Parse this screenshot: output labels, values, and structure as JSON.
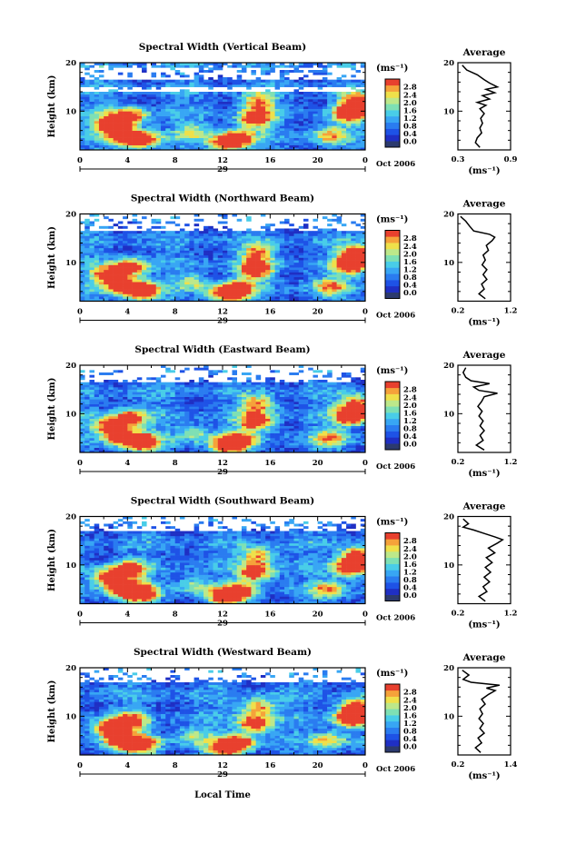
{
  "figure": {
    "xlabel": "Local Time",
    "date_label": "Oct 2006",
    "day_label": "29"
  },
  "colorbar": {
    "unit_label": "(ms⁻¹)",
    "ticks": [
      "0.0",
      "0.4",
      "0.8",
      "1.2",
      "1.6",
      "2.0",
      "2.4",
      "2.8"
    ],
    "colors": [
      "#2c3a6e",
      "#1f2fc4",
      "#1e52e6",
      "#2a7cf0",
      "#38a6f4",
      "#49cde8",
      "#7ee0b4",
      "#bde88a",
      "#efe04a",
      "#f5a23a",
      "#e8402e"
    ]
  },
  "chart_data": [
    {
      "type": "heatmap",
      "title": "Spectral Width (Vertical Beam)",
      "ylabel": "Height (km)",
      "xlim": [
        0,
        24
      ],
      "ylim": [
        2,
        20
      ],
      "xticks": [
        "0",
        "4",
        "8",
        "12",
        "16",
        "20",
        "0"
      ],
      "yticks": [
        "10",
        "20"
      ],
      "profile": {
        "title": "Average",
        "xlim": [
          0.3,
          0.9
        ],
        "xticks": [
          "0.3",
          "0.9"
        ],
        "xlabel": "(ms⁻¹)",
        "points": [
          [
            0.55,
            2.5
          ],
          [
            0.5,
            3.5
          ],
          [
            0.52,
            4.5
          ],
          [
            0.57,
            5.5
          ],
          [
            0.55,
            6.5
          ],
          [
            0.58,
            7.5
          ],
          [
            0.56,
            8.5
          ],
          [
            0.6,
            9.5
          ],
          [
            0.55,
            10.5
          ],
          [
            0.62,
            11.2
          ],
          [
            0.52,
            11.8
          ],
          [
            0.66,
            12.5
          ],
          [
            0.58,
            13.2
          ],
          [
            0.72,
            13.8
          ],
          [
            0.62,
            14.5
          ],
          [
            0.75,
            15
          ],
          [
            0.66,
            15.8
          ],
          [
            0.6,
            16.5
          ],
          [
            0.52,
            17.5
          ],
          [
            0.4,
            18.5
          ],
          [
            0.35,
            19.5
          ]
        ]
      }
    },
    {
      "type": "heatmap",
      "title": "Spectral Width (Northward Beam)",
      "ylabel": "Height (km)",
      "xlim": [
        0,
        24
      ],
      "ylim": [
        2,
        20
      ],
      "xticks": [
        "0",
        "4",
        "8",
        "12",
        "16",
        "20",
        "0"
      ],
      "yticks": [
        "10",
        "20"
      ],
      "profile": {
        "title": "Average",
        "xlim": [
          0.2,
          1.2
        ],
        "xticks": [
          "0.2",
          "1.2"
        ],
        "xlabel": "(ms⁻¹)",
        "points": [
          [
            0.72,
            2.5
          ],
          [
            0.6,
            3.5
          ],
          [
            0.7,
            4.5
          ],
          [
            0.65,
            5.5
          ],
          [
            0.75,
            6.5
          ],
          [
            0.68,
            7.5
          ],
          [
            0.75,
            8.5
          ],
          [
            0.66,
            9.5
          ],
          [
            0.72,
            10.5
          ],
          [
            0.68,
            11.5
          ],
          [
            0.78,
            12.5
          ],
          [
            0.74,
            13.5
          ],
          [
            0.85,
            14.5
          ],
          [
            0.9,
            15.2
          ],
          [
            0.8,
            15.8
          ],
          [
            0.5,
            16.5
          ],
          [
            0.42,
            17.5
          ],
          [
            0.35,
            18.5
          ],
          [
            0.25,
            19.5
          ]
        ]
      }
    },
    {
      "type": "heatmap",
      "title": "Spectral Width (Eastward Beam)",
      "ylabel": "Height (km)",
      "xlim": [
        0,
        24
      ],
      "ylim": [
        2,
        20
      ],
      "xticks": [
        "0",
        "4",
        "8",
        "12",
        "16",
        "20",
        "0"
      ],
      "yticks": [
        "10",
        "20"
      ],
      "profile": {
        "title": "Average",
        "xlim": [
          0.2,
          1.2
        ],
        "xticks": [
          "0.2",
          "1.2"
        ],
        "xlabel": "(ms⁻¹)",
        "points": [
          [
            0.7,
            2.5
          ],
          [
            0.55,
            3.5
          ],
          [
            0.68,
            4.5
          ],
          [
            0.62,
            5.5
          ],
          [
            0.7,
            6.5
          ],
          [
            0.62,
            7.5
          ],
          [
            0.68,
            8.5
          ],
          [
            0.6,
            9.5
          ],
          [
            0.66,
            10.5
          ],
          [
            0.58,
            11.5
          ],
          [
            0.65,
            12.5
          ],
          [
            0.7,
            13.5
          ],
          [
            0.95,
            14.2
          ],
          [
            0.6,
            14.8
          ],
          [
            0.5,
            15.5
          ],
          [
            0.8,
            16.2
          ],
          [
            0.45,
            16.8
          ],
          [
            0.35,
            17.5
          ],
          [
            0.3,
            18.5
          ],
          [
            0.35,
            19.5
          ]
        ]
      }
    },
    {
      "type": "heatmap",
      "title": "Spectral Width (Southward Beam)",
      "ylabel": "Height (km)",
      "xlim": [
        0,
        24
      ],
      "ylim": [
        2,
        20
      ],
      "xticks": [
        "0",
        "4",
        "8",
        "12",
        "16",
        "20",
        "0"
      ],
      "yticks": [
        "10",
        "20"
      ],
      "profile": {
        "title": "Average",
        "xlim": [
          0.2,
          1.2
        ],
        "xticks": [
          "0.2",
          "1.2"
        ],
        "xlabel": "(ms⁻¹)",
        "points": [
          [
            0.72,
            2.5
          ],
          [
            0.6,
            3.5
          ],
          [
            0.75,
            4.5
          ],
          [
            0.68,
            5.5
          ],
          [
            0.8,
            6.5
          ],
          [
            0.7,
            7.5
          ],
          [
            0.82,
            8.5
          ],
          [
            0.72,
            9.5
          ],
          [
            0.85,
            10.5
          ],
          [
            0.74,
            11.5
          ],
          [
            0.9,
            12.5
          ],
          [
            0.78,
            13.5
          ],
          [
            0.95,
            14.5
          ],
          [
            1.05,
            15.2
          ],
          [
            0.9,
            15.8
          ],
          [
            0.7,
            16.5
          ],
          [
            0.5,
            17.2
          ],
          [
            0.3,
            17.8
          ],
          [
            0.4,
            18.5
          ],
          [
            0.3,
            19.5
          ]
        ]
      }
    },
    {
      "type": "heatmap",
      "title": "Spectral Width (Westward Beam)",
      "ylabel": "Height (km)",
      "xlim": [
        0,
        24
      ],
      "ylim": [
        2,
        20
      ],
      "xticks": [
        "0",
        "4",
        "8",
        "12",
        "16",
        "20",
        "0"
      ],
      "yticks": [
        "10",
        "20"
      ],
      "profile": {
        "title": "Average",
        "xlim": [
          0.2,
          1.4
        ],
        "xticks": [
          "0.2",
          "1.4"
        ],
        "xlabel": "(ms⁻¹)",
        "points": [
          [
            0.72,
            2.5
          ],
          [
            0.6,
            3.5
          ],
          [
            0.74,
            4.5
          ],
          [
            0.66,
            5.5
          ],
          [
            0.8,
            6.5
          ],
          [
            0.7,
            7.5
          ],
          [
            0.78,
            8.5
          ],
          [
            0.68,
            9.5
          ],
          [
            0.76,
            10.5
          ],
          [
            0.7,
            11.5
          ],
          [
            0.82,
            12.5
          ],
          [
            0.74,
            13.5
          ],
          [
            0.9,
            14.5
          ],
          [
            1.05,
            15.3
          ],
          [
            0.85,
            15.8
          ],
          [
            1.15,
            16.4
          ],
          [
            0.5,
            17.0
          ],
          [
            0.32,
            17.6
          ],
          [
            0.45,
            18.5
          ],
          [
            0.3,
            19.5
          ]
        ]
      }
    }
  ]
}
